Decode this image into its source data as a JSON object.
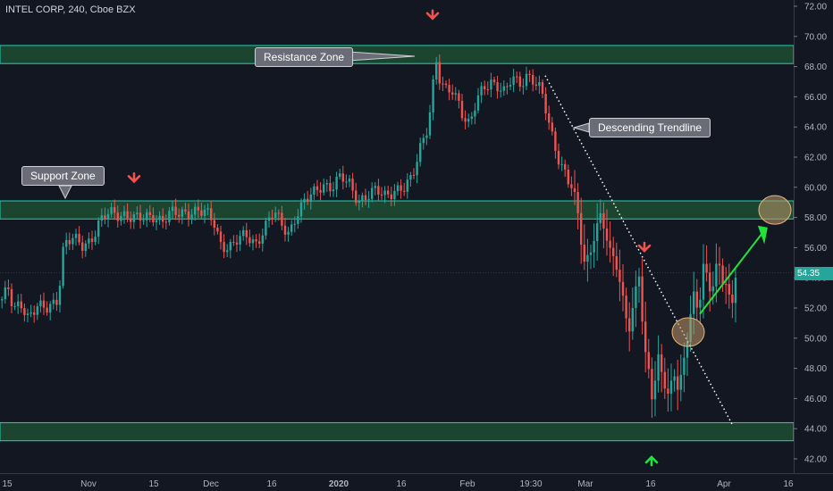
{
  "header": {
    "symbol": "INTEL CORP",
    "interval": "240",
    "exchange": "Cboe BZX"
  },
  "colors": {
    "background": "#131722",
    "up": "#26a69a",
    "down": "#ef5350",
    "zone_fill": "#1e4d33",
    "zone_edge": "#22d3b0",
    "arrow_green": "#22e33a"
  },
  "chart_data": {
    "type": "candlestick",
    "ylim": [
      41.0,
      72.5
    ],
    "yticks": [
      "42.00",
      "44.00",
      "46.00",
      "48.00",
      "50.00",
      "52.00",
      "54.00",
      "56.00",
      "58.00",
      "60.00",
      "62.00",
      "64.00",
      "66.00",
      "68.00",
      "70.00",
      "72.00"
    ],
    "xticks": [
      "15",
      "Nov",
      "15",
      "Dec",
      "16",
      "2020",
      "16",
      "Feb",
      "19:30",
      "Mar",
      "16",
      "Apr",
      "16"
    ],
    "last_price": "54.35",
    "zones": [
      {
        "name": "Resistance Zone",
        "low": 68.2,
        "high": 69.4
      },
      {
        "name": "Support Zone",
        "low": 57.9,
        "high": 59.1
      },
      {
        "name": "",
        "low": 43.2,
        "high": 44.4
      }
    ],
    "trendline": {
      "label": "Descending Trendline",
      "from": 67.4,
      "to": 44.2
    },
    "price_path": [
      [
        0,
        52.5
      ],
      [
        8,
        53.2
      ],
      [
        14,
        51.7
      ],
      [
        22,
        52.4
      ],
      [
        30,
        51.5
      ],
      [
        40,
        52.1
      ],
      [
        50,
        51.8
      ],
      [
        62,
        52.5
      ],
      [
        66,
        54.0
      ],
      [
        70,
        56.3
      ],
      [
        80,
        56.6
      ],
      [
        90,
        56.0
      ],
      [
        100,
        56.5
      ],
      [
        110,
        57.8
      ],
      [
        120,
        58.2
      ],
      [
        130,
        58.1
      ],
      [
        140,
        58.3
      ],
      [
        150,
        58.0
      ],
      [
        160,
        57.8
      ],
      [
        170,
        58.1
      ],
      [
        180,
        57.9
      ],
      [
        190,
        58.3
      ],
      [
        200,
        58.1
      ],
      [
        210,
        58.4
      ],
      [
        220,
        58.6
      ],
      [
        230,
        58.2
      ],
      [
        238,
        57.6
      ],
      [
        245,
        56.3
      ],
      [
        255,
        56.1
      ],
      [
        265,
        56.5
      ],
      [
        275,
        56.7
      ],
      [
        285,
        56.3
      ],
      [
        295,
        57.4
      ],
      [
        305,
        58.3
      ],
      [
        315,
        57.4
      ],
      [
        322,
        57.0
      ],
      [
        330,
        58.2
      ],
      [
        340,
        59.0
      ],
      [
        350,
        59.6
      ],
      [
        360,
        60.3
      ],
      [
        370,
        60.0
      ],
      [
        380,
        60.6
      ],
      [
        390,
        60.2
      ],
      [
        400,
        59.2
      ],
      [
        410,
        59.4
      ],
      [
        420,
        59.7
      ],
      [
        430,
        59.5
      ],
      [
        440,
        59.9
      ],
      [
        450,
        59.8
      ],
      [
        460,
        60.5
      ],
      [
        468,
        62.6
      ],
      [
        476,
        63.9
      ],
      [
        482,
        65.8
      ],
      [
        486,
        68.6
      ],
      [
        490,
        67.1
      ],
      [
        496,
        66.3
      ],
      [
        504,
        66.6
      ],
      [
        512,
        65.8
      ],
      [
        518,
        64.6
      ],
      [
        524,
        64.0
      ],
      [
        532,
        65.6
      ],
      [
        540,
        66.7
      ],
      [
        548,
        67.1
      ],
      [
        556,
        66.7
      ],
      [
        564,
        66.1
      ],
      [
        572,
        67.3
      ],
      [
        580,
        66.9
      ],
      [
        588,
        67.5
      ],
      [
        596,
        67.0
      ],
      [
        604,
        66.3
      ],
      [
        610,
        65.0
      ],
      [
        616,
        63.6
      ],
      [
        622,
        62.3
      ],
      [
        628,
        61.4
      ],
      [
        634,
        60.4
      ],
      [
        640,
        59.8
      ],
      [
        646,
        57.8
      ],
      [
        652,
        55.2
      ],
      [
        658,
        55.4
      ],
      [
        664,
        57.1
      ],
      [
        670,
        58.0
      ],
      [
        676,
        57.0
      ],
      [
        682,
        55.4
      ],
      [
        690,
        54.8
      ],
      [
        696,
        52.6
      ],
      [
        702,
        50.6
      ],
      [
        708,
        52.3
      ],
      [
        714,
        54.1
      ],
      [
        720,
        49.0
      ],
      [
        724,
        48.0
      ],
      [
        728,
        46.3
      ],
      [
        732,
        47.6
      ],
      [
        736,
        49.0
      ],
      [
        740,
        47.4
      ],
      [
        744,
        46.8
      ],
      [
        748,
        45.7
      ],
      [
        752,
        47.8
      ],
      [
        756,
        46.6
      ],
      [
        762,
        47.6
      ],
      [
        766,
        49.3
      ],
      [
        770,
        51.3
      ],
      [
        774,
        53.3
      ],
      [
        778,
        51.8
      ],
      [
        782,
        52.7
      ],
      [
        786,
        54.9
      ],
      [
        790,
        53.6
      ],
      [
        794,
        52.8
      ],
      [
        798,
        54.2
      ],
      [
        802,
        55.4
      ],
      [
        806,
        53.8
      ],
      [
        810,
        54.4
      ],
      [
        814,
        52.8
      ],
      [
        818,
        52.0
      ],
      [
        822,
        54.3
      ]
    ],
    "annotations": [
      {
        "label": "Resistance Zone"
      },
      {
        "label": "Descending Trendline"
      },
      {
        "label": "Support Zone"
      }
    ],
    "markers": [
      {
        "type": "arrow-down",
        "color": "#ef5350",
        "at_price": 71.3
      },
      {
        "type": "arrow-down",
        "color": "#ef5350",
        "at_price": 60.5
      },
      {
        "type": "arrow-down",
        "color": "#ef5350",
        "at_price": 55.9
      },
      {
        "type": "arrow-up",
        "color": "#22e33a",
        "at_price": 42.0
      }
    ],
    "target_ellipses": [
      {
        "price": 50.4
      },
      {
        "price": 58.5
      }
    ]
  }
}
